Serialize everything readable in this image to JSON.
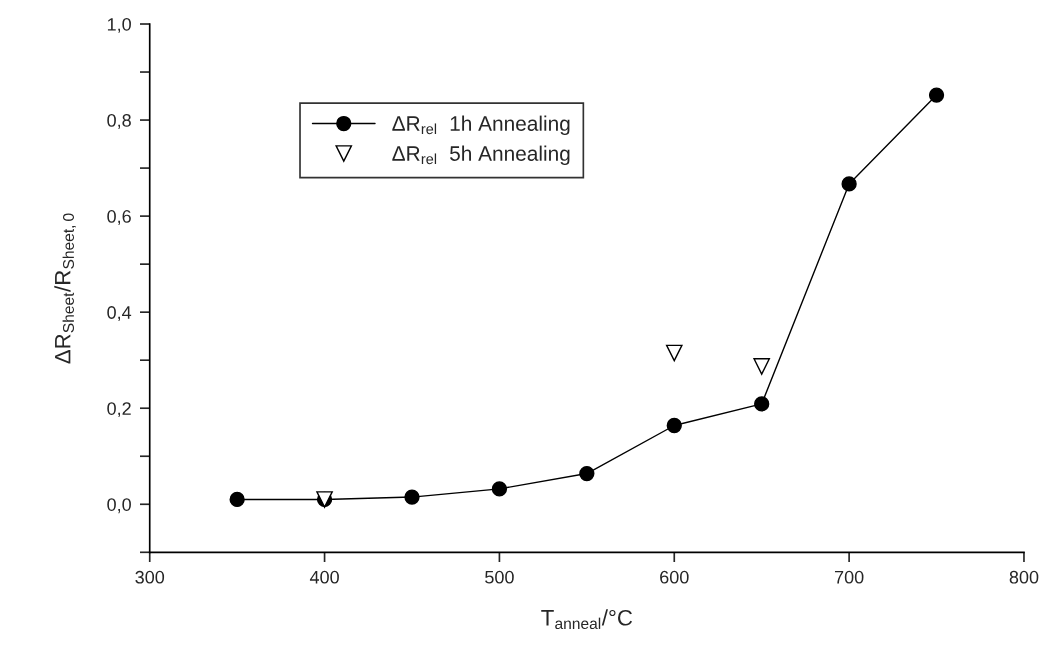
{
  "chart_data": {
    "type": "line",
    "xlabel": "T$_{anneal}$/°C",
    "ylabel": "ΔR$_{Sheet}$/R$_{Sheet,0}$",
    "x": [
      350,
      400,
      450,
      500,
      550,
      600,
      650,
      700,
      750
    ],
    "series": [
      {
        "name": "ΔR$_{rel}$  1h Annealing",
        "color": "#000000",
        "marker": "circle",
        "line_style": "solid",
        "values": [
          0.01,
          0.01,
          0.015,
          0.032,
          0.064,
          0.164,
          0.209,
          0.667,
          0.852
        ]
      },
      {
        "name": "ΔR$_{rel}$  5h Annealing",
        "color": "#000000",
        "type": "scatter",
        "marker": "triangle",
        "x": [
          400,
          600,
          650
        ],
        "values": [
          0.01,
          0.315,
          0.287
        ]
      }
    ],
    "xlim": [
      300,
      800
    ],
    "xticks": [
      300,
      400,
      500,
      600,
      700,
      800
    ],
    "ylim": [
      -0.1,
      1.0
    ],
    "yticks": [
      {
        "value": -0.1,
        "label": null
      },
      {
        "value": 0.0,
        "label": "0,0"
      },
      {
        "value": 0.1,
        "label": null
      },
      {
        "value": 0.2,
        "label": "0,2"
      },
      {
        "value": 0.3,
        "label": null
      },
      {
        "value": 0.4,
        "label": "0,4"
      },
      {
        "value": 0.5,
        "label": null
      },
      {
        "value": 0.6,
        "label": "0,6"
      },
      {
        "value": 0.7,
        "label": null
      },
      {
        "value": 0.8,
        "label": "0,8"
      },
      {
        "value": 0.9,
        "label": null
      },
      {
        "value": 1.0,
        "label": "1,0"
      }
    ],
    "grid": false,
    "legend": "top left"
  }
}
